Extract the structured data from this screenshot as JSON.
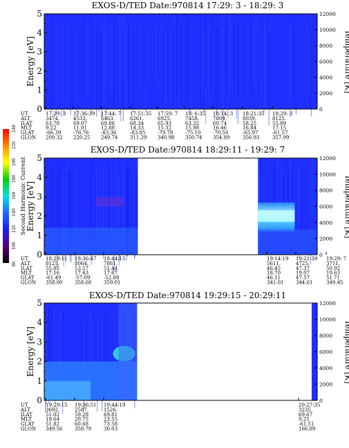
{
  "colors": {
    "background_blue": "#1f2fff",
    "data_gap": "#ffffff",
    "frame": "#000000"
  },
  "colorbar": {
    "label": "Second Harmonic Current",
    "ticks": [
      "80",
      "100",
      "120",
      "140",
      "160",
      "180",
      "200",
      "220",
      "240"
    ],
    "stops": [
      "#000000",
      "#5a0078",
      "#1a1aff",
      "#1e6bff",
      "#00e0e0",
      "#00d000",
      "#ffff00",
      "#ff8a00",
      "#ff0000"
    ]
  },
  "panels": [
    {
      "title": "EXOS-D/TED    Date:970814  17:29: 3 - 18:29: 3",
      "ylabel": "Energy [eV]",
      "y2label": "Temperature [K]",
      "yticks": [
        "0",
        "1",
        "2",
        "3",
        "4",
        "5"
      ],
      "y2ticks": [
        "0",
        "2000",
        "4000",
        "6000",
        "8000",
        "10000",
        "12000"
      ],
      "eph_labels": [
        "UT",
        "ALT",
        "ILAT",
        "MLT",
        "GLAT",
        "GLON"
      ],
      "eph_cols": [
        [
          "17:29: 3",
          "3474.",
          "63.78",
          "9.22",
          "-66.39",
          "209.32"
        ],
        [
          "17:36:39",
          "4533.",
          "69.07",
          "11.01",
          "-76.76",
          "220.25"
        ],
        [
          "17:44: 7",
          "5463.",
          "69.86",
          "12.88",
          "-83.36",
          "249.74"
        ],
        [
          "17:51:35",
          "6261.",
          "68.34",
          "14.33",
          "-83.85",
          "311.29"
        ],
        [
          "17:59: 7",
          "6925.",
          "65.93",
          "15.32",
          "-79.78",
          "340.98"
        ],
        [
          "18: 6:35",
          "7458.",
          "63.32",
          "15.98",
          "-75.10",
          "350.74"
        ],
        [
          "18:14: 3",
          "7809.",
          "60.74",
          "16.46",
          "-70.50",
          "354.89"
        ],
        [
          "18:21:35",
          "8039.",
          "58.25",
          "16.84",
          "-65.97",
          "356.93"
        ],
        [
          "18:29: 3",
          "8125.",
          "55.89",
          "17.15",
          "-61.57",
          "357.99"
        ]
      ],
      "data_segments": [
        [
          0,
          1
        ]
      ]
    },
    {
      "title": "EXOS-D/TED    Date:970814  18:29:11 - 19:29: 7",
      "ylabel": "Energy [eV]",
      "y2label": "Temperature [K]",
      "yticks": [
        "0",
        "1",
        "2",
        "3",
        "4",
        "5"
      ],
      "y2ticks": [
        "0",
        "2000",
        "4000",
        "6000",
        "8000",
        "10000",
        "12000"
      ],
      "eph_labels": [
        "UT",
        "ALT",
        "ILAT",
        "MLT",
        "GLAT",
        "GLON"
      ],
      "eph_cols": [
        [
          "18:29:11",
          "8125.",
          "55.85",
          "17.16",
          "-61.49",
          "358.00"
        ],
        [
          "18:36:47",
          "8064.",
          "53.57",
          "17.43",
          "-57.09",
          "358.60"
        ],
        [
          "18:44:15",
          "7861.",
          "51.44",
          "17.67",
          "-52.88",
          "359.01"
        ],
        [
          "19:14:19",
          "5611.",
          "46.45",
          "18.70",
          "46.11",
          "341.01"
        ],
        [
          "19:21:39",
          "4725.",
          "47.37",
          "19.07",
          "47.57",
          "344.61"
        ],
        [
          "19:29: 7",
          "3711.",
          "50.92",
          "19.63",
          "51.71",
          "349.45"
        ]
      ],
      "data_segments": [
        [
          0,
          0.343
        ],
        [
          0.783,
          1
        ]
      ]
    },
    {
      "title": "EXOS-D/TED    Date:970814  19:29:15 - 20:29:11",
      "ylabel": "Energy [eV]",
      "y2label": "Temperature [K]",
      "yticks": [
        "0",
        "1",
        "2",
        "3",
        "4",
        "5"
      ],
      "y2ticks": [
        "0",
        "2000",
        "4000",
        "6000",
        "8000",
        "10000",
        "12000"
      ],
      "eph_labels": [
        "UT",
        "ALT",
        "ILAT",
        "MLT",
        "GLAT",
        "GLON"
      ],
      "eph_cols": [
        [
          "19:29:15",
          "3692.",
          "51.02",
          "19.64",
          "51.82",
          "349.56"
        ],
        [
          "19:36:51",
          "2587.",
          "59.28",
          "20.75",
          "60.68",
          "358.70"
        ],
        [
          "19:44:19",
          "1526.",
          "69.81",
          "23.55",
          "73.58",
          "30.03"
        ],
        [
          "20:27:35",
          "3235.",
          "69.67",
          "9.25",
          "-61.51",
          "166.89"
        ]
      ],
      "data_segments": [
        [
          0,
          0.34
        ],
        [
          0.98,
          1
        ]
      ]
    }
  ],
  "chart_data": [
    {
      "type": "heatmap",
      "title": "EXOS-D/TED    Date:970814  17:29: 3 - 18:29: 3",
      "xlabel": "UT",
      "ylabel": "Energy [eV]",
      "y2label": "Temperature [K]",
      "x_range": [
        "17:29: 3",
        "18:29: 3"
      ],
      "ylim": [
        0,
        5
      ],
      "y2lim": [
        0,
        12000
      ],
      "colorbar_label": "Second Harmonic Current",
      "colorbar_range": [
        80,
        240
      ]
    },
    {
      "type": "heatmap",
      "title": "EXOS-D/TED    Date:970814  18:29:11 - 19:29: 7",
      "xlabel": "UT",
      "ylabel": "Energy [eV]",
      "y2label": "Temperature [K]",
      "x_range": [
        "18:29:11",
        "19:29: 7"
      ],
      "ylim": [
        0,
        5
      ],
      "y2lim": [
        0,
        12000
      ],
      "colorbar_label": "Second Harmonic Current",
      "colorbar_range": [
        80,
        240
      ]
    },
    {
      "type": "heatmap",
      "title": "EXOS-D/TED    Date:970814  19:29:15 - 20:29:11",
      "xlabel": "UT",
      "ylabel": "Energy [eV]",
      "y2label": "Temperature [K]",
      "x_range": [
        "19:29:15",
        "20:29:11"
      ],
      "ylim": [
        0,
        5
      ],
      "y2lim": [
        0,
        12000
      ],
      "colorbar_label": "Second Harmonic Current",
      "colorbar_range": [
        80,
        240
      ]
    }
  ]
}
